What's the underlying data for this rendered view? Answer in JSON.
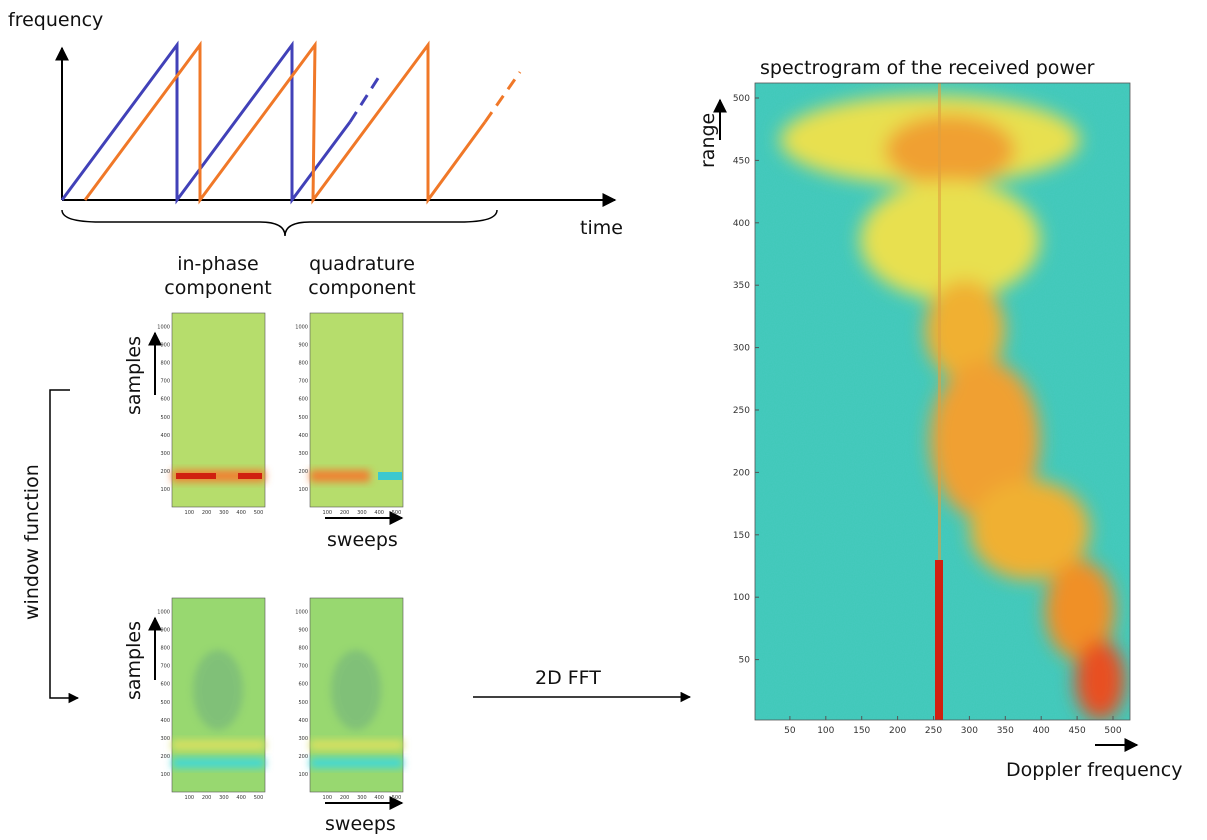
{
  "top_chart": {
    "y_label": "frequency",
    "x_label": "time"
  },
  "components": {
    "in_phase": "in-phase component",
    "quadrature": "quadrature component"
  },
  "panels": {
    "samples_label": "samples",
    "sweeps_label": "sweeps",
    "yticks": [
      "100",
      "200",
      "300",
      "400",
      "500",
      "600",
      "700",
      "800",
      "900",
      "1000"
    ],
    "xticks": [
      "100",
      "200",
      "300",
      "400",
      "500"
    ]
  },
  "window_function": "window function",
  "fft_label": "2D FFT",
  "spectrogram": {
    "title": "spectrogram of the received power",
    "y_label": "range",
    "x_label": "Doppler frequency",
    "yticks": [
      50,
      100,
      150,
      200,
      250,
      300,
      350,
      400,
      450,
      500
    ],
    "xticks": [
      50,
      100,
      150,
      200,
      250,
      300,
      350,
      400,
      450,
      500
    ]
  }
}
